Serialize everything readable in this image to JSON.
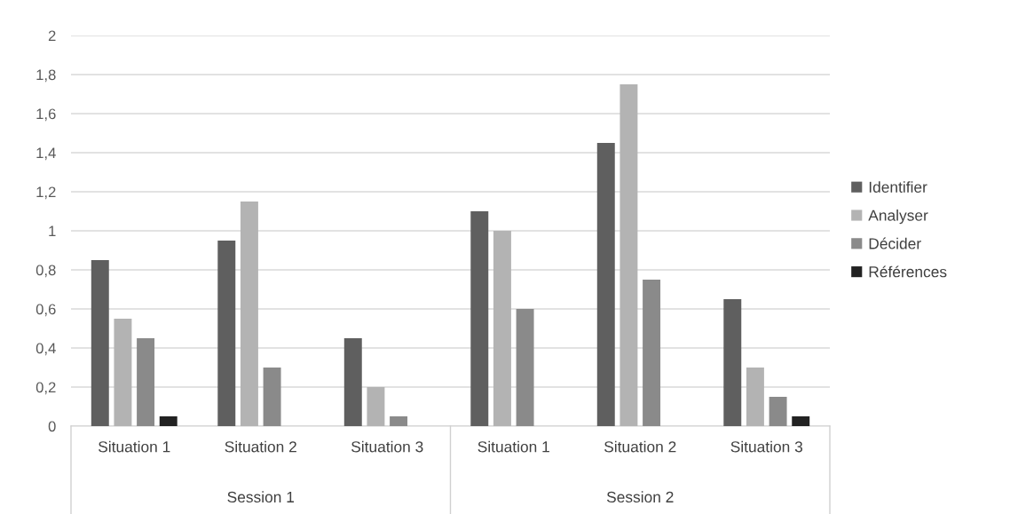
{
  "chart_data": {
    "type": "bar",
    "categories": [
      "Situation 1",
      "Situation 2",
      "Situation 3",
      "Situation 1",
      "Situation 2",
      "Situation 3"
    ],
    "series": [
      {
        "name": "Identifier",
        "color": "#5f5f5f",
        "values": [
          0.85,
          0.95,
          0.45,
          1.1,
          1.45,
          0.65
        ]
      },
      {
        "name": "Analyser",
        "color": "#b3b3b3",
        "values": [
          0.55,
          1.15,
          0.2,
          1.0,
          1.75,
          0.3
        ]
      },
      {
        "name": "Décider",
        "color": "#8a8a8a",
        "values": [
          0.45,
          0.3,
          0.05,
          0.6,
          0.75,
          0.15
        ]
      },
      {
        "name": "Références",
        "color": "#222222",
        "values": [
          0.05,
          0,
          0,
          0,
          0,
          0.05
        ]
      }
    ],
    "annotations": [
      "Session 1",
      "Session 2"
    ],
    "ylim": [
      0,
      2
    ],
    "yticks": [
      0,
      {
        "value": 0.2,
        "label": "0,2"
      },
      {
        "value": 0.4,
        "label": "0,4"
      },
      {
        "value": 0.6,
        "label": "0,6"
      },
      {
        "value": 0.8,
        "label": "0,8"
      },
      1,
      {
        "value": 1.2,
        "label": "1,2"
      },
      {
        "value": 1.4,
        "label": "1,4"
      },
      {
        "value": 1.6,
        "label": "1,6"
      },
      {
        "value": 1.8,
        "label": "1,8"
      },
      2
    ],
    "grid": "y",
    "legend": "right"
  }
}
